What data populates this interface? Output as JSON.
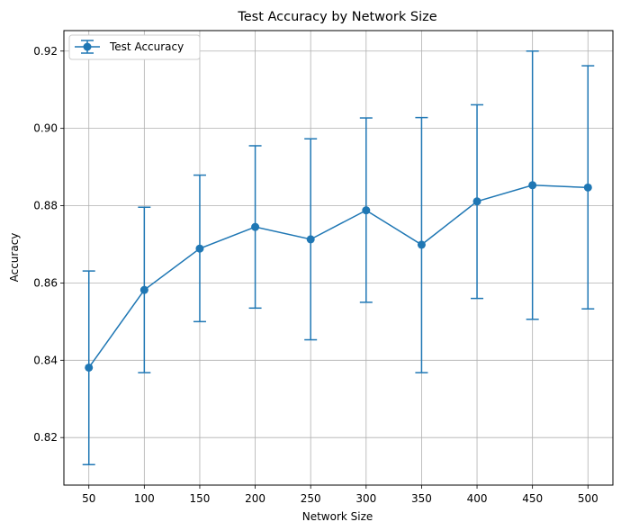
{
  "chart_data": {
    "type": "line",
    "title": "Test Accuracy by Network Size",
    "xlabel": "Network Size",
    "ylabel": "Accuracy",
    "x": [
      50,
      100,
      150,
      200,
      250,
      300,
      350,
      400,
      450,
      500
    ],
    "series": [
      {
        "name": "Test Accuracy",
        "values": [
          0.8381,
          0.8582,
          0.8689,
          0.8745,
          0.8713,
          0.8788,
          0.8699,
          0.8811,
          0.8853,
          0.8847
        ],
        "err_lower": [
          0.813,
          0.8368,
          0.85,
          0.8535,
          0.8453,
          0.855,
          0.8368,
          0.856,
          0.8506,
          0.8533
        ],
        "err_upper": [
          0.8631,
          0.8796,
          0.8879,
          0.8955,
          0.8973,
          0.9027,
          0.9028,
          0.9061,
          0.92,
          0.9162
        ],
        "color": "#1f77b4",
        "marker": "circle",
        "error_bars": true
      }
    ],
    "xticks": [
      50,
      100,
      150,
      200,
      250,
      300,
      350,
      400,
      450,
      500
    ],
    "yticks": [
      0.82,
      0.84,
      0.86,
      0.88,
      0.9,
      0.92
    ],
    "ytick_labels": [
      "0.82",
      "0.84",
      "0.86",
      "0.88",
      "0.90",
      "0.92"
    ],
    "xlim": [
      27.5,
      522.5
    ],
    "ylim": [
      0.8077,
      0.9253
    ],
    "grid": true,
    "legend_position": "upper-left"
  }
}
